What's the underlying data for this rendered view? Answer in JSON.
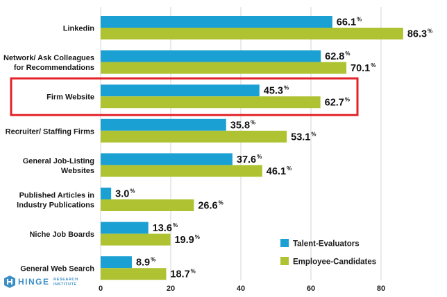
{
  "chart_data": {
    "type": "bar",
    "orientation": "horizontal",
    "categories": [
      [
        "Linkedin"
      ],
      [
        "Network/ Ask Colleagues",
        "for Recommendations"
      ],
      [
        "Firm Website"
      ],
      [
        "Recruiter/ Staffing Firms"
      ],
      [
        "General Job-Listing",
        "Websites"
      ],
      [
        "Published Articles in",
        "Industry Publications"
      ],
      [
        "Niche Job Boards"
      ],
      [
        "General Web Search"
      ]
    ],
    "series": [
      {
        "name": "Talent-Evaluators",
        "color": "#1aa0d3",
        "values": [
          66.1,
          62.8,
          45.3,
          35.8,
          37.6,
          3.0,
          13.6,
          8.9
        ]
      },
      {
        "name": "Employee-Candidates",
        "color": "#afc332",
        "values": [
          86.3,
          70.1,
          62.7,
          53.1,
          46.1,
          26.6,
          19.9,
          18.7
        ]
      }
    ],
    "value_suffix": "%",
    "xlim": [
      0,
      80
    ],
    "xticks": [
      0,
      20,
      40,
      60,
      80
    ],
    "grid": true,
    "legend_position": "bottom-right",
    "highlight_category_index": 2,
    "highlight_color": "#e3232a"
  },
  "logo": {
    "name": "HINGE",
    "sub_line1": "RESEARCH",
    "sub_line2": "INSTITUTE",
    "color": "#3b8fc6"
  }
}
